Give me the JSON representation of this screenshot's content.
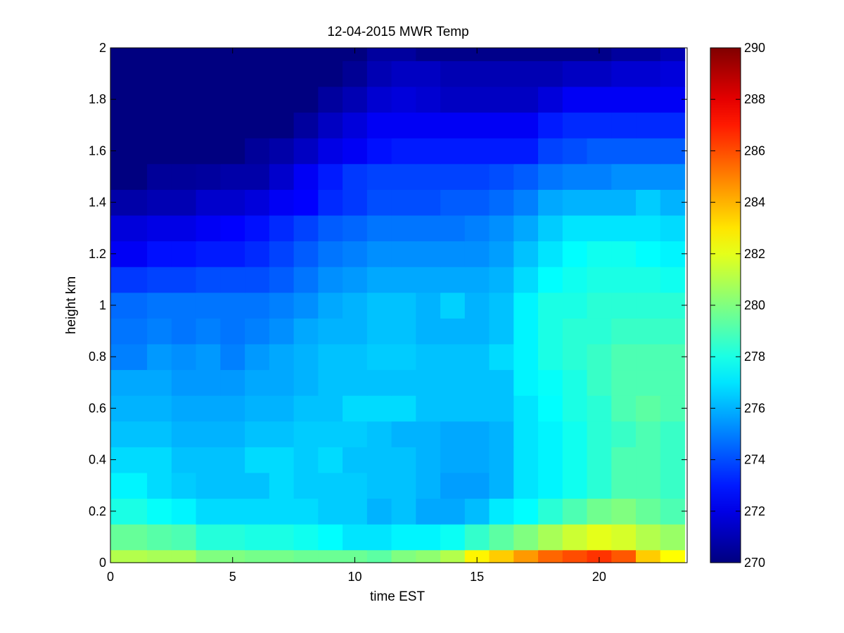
{
  "chart_data": {
    "type": "heatmap",
    "title": "12-04-2015 MWR Temp",
    "xlabel": "time EST",
    "ylabel": "height km",
    "xlim": [
      0,
      23.6
    ],
    "ylim": [
      0,
      2
    ],
    "x_ticks": [
      0,
      5,
      10,
      15,
      20
    ],
    "y_ticks": [
      0,
      0.2,
      0.4,
      0.6,
      0.8,
      1,
      1.2,
      1.4,
      1.6,
      1.8,
      2
    ],
    "x_edges": [
      0,
      1.5,
      2.5,
      3.5,
      4.5,
      5.5,
      6.5,
      7.5,
      8.5,
      9.5,
      10.5,
      11.5,
      12.5,
      13.5,
      14.5,
      15.5,
      16.5,
      17.5,
      18.5,
      19.5,
      20.5,
      21.5,
      22.5,
      23.5
    ],
    "y_edges": [
      0,
      0.05,
      0.15,
      0.25,
      0.35,
      0.45,
      0.55,
      0.65,
      0.75,
      0.85,
      0.95,
      1.05,
      1.15,
      1.25,
      1.35,
      1.45,
      1.55,
      1.65,
      1.75,
      1.85,
      1.95,
      2.0
    ],
    "z_values": [
      [
        281.0,
        280.8,
        280.8,
        280.0,
        280.0,
        279.8,
        279.8,
        279.6,
        279.6,
        279.6,
        279.3,
        280.0,
        280.3,
        281.0,
        282.7,
        283.5,
        284.5,
        285.5,
        286.0,
        286.5,
        285.8,
        283.5,
        282.5
      ],
      [
        279.5,
        279.2,
        279.0,
        278.2,
        278.2,
        278.0,
        278.0,
        277.8,
        277.5,
        277.0,
        277.0,
        277.3,
        277.3,
        277.7,
        278.5,
        279.3,
        280.0,
        280.8,
        281.5,
        282.0,
        281.7,
        281.0,
        280.5
      ],
      [
        278.0,
        277.6,
        277.3,
        276.8,
        276.8,
        276.8,
        276.8,
        276.8,
        276.5,
        276.5,
        276.0,
        276.3,
        275.8,
        275.8,
        276.2,
        277.1,
        277.5,
        278.3,
        279.0,
        279.7,
        280.0,
        279.5,
        279.0
      ],
      [
        277.3,
        276.8,
        276.5,
        276.3,
        276.3,
        276.3,
        276.8,
        276.5,
        276.5,
        276.5,
        276.3,
        276.3,
        276.0,
        275.6,
        275.6,
        276.0,
        277.0,
        277.3,
        277.8,
        278.3,
        279.0,
        279.0,
        278.6
      ],
      [
        276.8,
        276.8,
        276.3,
        276.3,
        276.3,
        276.8,
        276.8,
        276.5,
        276.8,
        276.3,
        276.3,
        276.3,
        276.0,
        275.8,
        275.8,
        276.0,
        277.0,
        277.3,
        277.8,
        278.3,
        279.0,
        279.0,
        278.6
      ],
      [
        276.3,
        276.3,
        276.0,
        276.0,
        276.0,
        276.3,
        276.3,
        276.5,
        276.5,
        276.5,
        276.3,
        276.0,
        276.0,
        275.8,
        275.8,
        276.0,
        277.0,
        277.3,
        277.8,
        278.3,
        278.6,
        279.0,
        278.6
      ],
      [
        276.0,
        276.0,
        275.8,
        275.8,
        275.8,
        276.0,
        276.0,
        276.3,
        276.3,
        276.8,
        276.8,
        276.8,
        276.3,
        276.3,
        276.3,
        276.3,
        277.0,
        277.5,
        278.0,
        278.3,
        279.0,
        279.3,
        279.0
      ],
      [
        275.8,
        275.8,
        275.5,
        275.5,
        275.5,
        275.8,
        275.8,
        276.0,
        276.3,
        276.3,
        276.3,
        276.3,
        276.3,
        276.3,
        276.3,
        276.3,
        277.3,
        277.6,
        278.0,
        278.6,
        279.0,
        279.0,
        279.0
      ],
      [
        275.0,
        275.5,
        275.3,
        275.5,
        275.0,
        275.5,
        275.8,
        276.0,
        276.3,
        276.3,
        276.5,
        276.5,
        276.3,
        276.3,
        276.3,
        276.8,
        277.3,
        278.0,
        278.3,
        278.6,
        279.0,
        279.0,
        279.0
      ],
      [
        274.8,
        275.0,
        274.8,
        275.0,
        274.8,
        275.0,
        275.3,
        275.8,
        276.0,
        276.0,
        276.3,
        276.3,
        276.0,
        276.0,
        276.0,
        276.3,
        277.3,
        278.0,
        278.3,
        278.3,
        278.6,
        278.6,
        278.6
      ],
      [
        274.6,
        274.8,
        274.8,
        274.8,
        274.8,
        274.8,
        275.0,
        275.3,
        275.8,
        276.0,
        276.3,
        276.3,
        276.0,
        276.6,
        276.0,
        276.3,
        277.3,
        278.0,
        278.0,
        278.3,
        278.3,
        278.3,
        278.3
      ],
      [
        273.6,
        273.8,
        273.8,
        274.0,
        274.0,
        274.0,
        274.3,
        274.8,
        275.3,
        275.5,
        275.8,
        275.8,
        275.8,
        275.8,
        275.8,
        276.0,
        276.8,
        277.5,
        277.8,
        278.0,
        278.0,
        278.0,
        277.8
      ],
      [
        272.3,
        272.8,
        272.8,
        273.0,
        273.0,
        273.3,
        273.8,
        274.3,
        274.8,
        275.0,
        275.3,
        275.3,
        275.3,
        275.3,
        275.3,
        275.6,
        276.3,
        277.0,
        277.5,
        277.8,
        277.8,
        277.5,
        277.3
      ],
      [
        271.8,
        272.0,
        272.0,
        272.3,
        272.5,
        272.8,
        273.3,
        273.8,
        274.3,
        274.5,
        274.8,
        274.8,
        274.8,
        274.8,
        275.0,
        275.3,
        275.8,
        276.5,
        277.0,
        277.0,
        277.0,
        277.0,
        276.8
      ],
      [
        270.8,
        271.0,
        271.0,
        271.5,
        271.5,
        271.8,
        272.3,
        272.5,
        273.3,
        273.6,
        274.0,
        274.0,
        274.0,
        274.3,
        274.3,
        274.6,
        275.0,
        275.8,
        276.0,
        276.0,
        276.0,
        276.5,
        276.0
      ],
      [
        270.0,
        270.5,
        270.5,
        270.6,
        270.8,
        270.8,
        271.5,
        272.3,
        273.0,
        273.6,
        273.8,
        273.8,
        273.8,
        273.8,
        273.8,
        274.0,
        274.3,
        274.8,
        275.0,
        275.0,
        275.3,
        275.3,
        275.3
      ],
      [
        270.0,
        270.0,
        270.0,
        270.0,
        270.0,
        270.5,
        270.8,
        271.3,
        272.0,
        272.3,
        272.8,
        273.0,
        273.0,
        273.0,
        273.0,
        273.0,
        273.0,
        273.8,
        274.0,
        274.3,
        274.3,
        274.3,
        274.3
      ],
      [
        270.0,
        270.0,
        270.0,
        270.0,
        270.0,
        270.0,
        270.0,
        270.6,
        271.3,
        271.8,
        272.3,
        272.3,
        272.3,
        272.3,
        272.3,
        272.3,
        272.3,
        273.0,
        273.3,
        273.3,
        273.3,
        273.3,
        273.3
      ],
      [
        270.0,
        270.0,
        270.0,
        270.0,
        270.0,
        270.0,
        270.0,
        270.0,
        270.6,
        271.0,
        271.6,
        271.8,
        271.6,
        271.3,
        271.3,
        271.3,
        271.3,
        271.8,
        272.3,
        272.3,
        272.3,
        272.3,
        272.3
      ],
      [
        270.0,
        270.0,
        270.0,
        270.0,
        270.0,
        270.0,
        270.0,
        270.0,
        270.0,
        270.4,
        271.0,
        271.3,
        271.3,
        271.0,
        271.0,
        271.0,
        271.0,
        271.0,
        271.3,
        271.3,
        271.6,
        271.6,
        271.8
      ],
      [
        270.0,
        270.0,
        270.0,
        270.0,
        270.0,
        270.0,
        270.0,
        270.0,
        270.0,
        270.0,
        270.6,
        270.6,
        270.2,
        270.2,
        270.2,
        270.2,
        270.2,
        270.2,
        270.2,
        270.2,
        270.6,
        270.6,
        271.0
      ]
    ],
    "colorbar": {
      "range": [
        270,
        290
      ],
      "ticks": [
        270,
        272,
        274,
        276,
        278,
        280,
        282,
        284,
        286,
        288,
        290
      ],
      "colormap": "jet"
    },
    "grid": false,
    "legend": "none"
  }
}
